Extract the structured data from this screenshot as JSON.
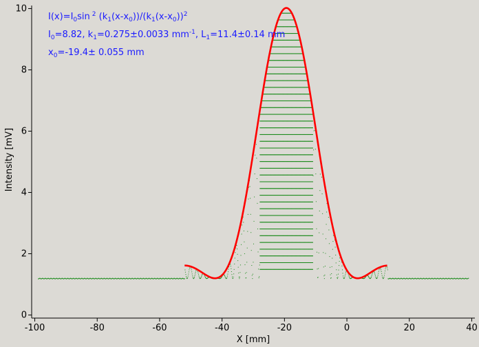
{
  "chart_data": {
    "type": "scatter",
    "xlabel": "X [mm]",
    "ylabel": "Intensity [mV]",
    "xlim": [
      -101,
      41
    ],
    "ylim": [
      -0.1,
      10.1
    ],
    "x_ticks": [
      -100,
      -80,
      -60,
      -40,
      -20,
      0,
      20,
      40
    ],
    "y_ticks": [
      0,
      2,
      4,
      6,
      8,
      10
    ],
    "grid": false,
    "colors": {
      "data": "#1a8a1a",
      "fit": "#ff0000",
      "annotation": "#1a1aff",
      "background": "#dcdad5"
    },
    "annotations": {
      "formula": {
        "a": "I(x)=I",
        "b": "0",
        "c": "sin",
        "d": "2",
        "e": " (k",
        "f": "1",
        "g": "(x-x",
        "h": "0",
        "i": "))/(k",
        "j": "1",
        "k": "(x-x",
        "l": "0",
        "m": "))",
        "n": "2"
      },
      "params1": {
        "a": "I",
        "b": "0",
        "c": "=8.82,  k",
        "d": "1",
        "e": "=0.275±0.0033 mm",
        "f": "-1",
        "g": ",   L",
        "h": "1",
        "i": "=11.4±0.14 mm"
      },
      "params2": {
        "a": "x",
        "b": "0",
        "c": "=-19.4±   0.055 mm"
      }
    },
    "series": [
      {
        "role": "data",
        "style": "dots",
        "x_range": [
          -99,
          39
        ],
        "baseline": 1.2
      },
      {
        "role": "fit",
        "style": "line",
        "x_range": [
          -52,
          13
        ],
        "x0": -19.4,
        "k1": 0.275,
        "I0": 8.82,
        "offset": 1.2
      }
    ]
  }
}
